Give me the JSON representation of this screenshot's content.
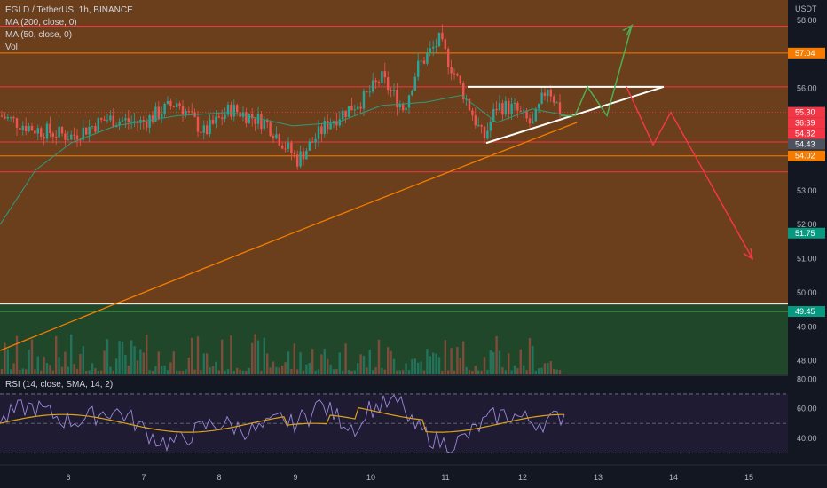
{
  "legend": {
    "symbol_line": "EGLD / TetherUS, 1h, BINANCE",
    "ma200": "MA (200, close, 0)",
    "ma50": "MA (50, close, 0)",
    "vol": "Vol",
    "rsi": "RSI (14, close, SMA, 14, 2)"
  },
  "price_axis": {
    "currency": "USDT",
    "ticks": [
      "58.00",
      "56.00",
      "53.00",
      "52.00",
      "51.00",
      "50.00",
      "49.00",
      "48.00"
    ],
    "tick_values": [
      58,
      56,
      53,
      52,
      51,
      50,
      49,
      48
    ],
    "range": [
      47.6,
      58.6
    ],
    "badges": [
      {
        "label": "57.04",
        "value": 57.04,
        "color": "#f57c00"
      },
      {
        "label": "55.30",
        "value": 55.3,
        "color": "#f23645"
      },
      {
        "label": "36:39",
        "value": 55.07,
        "color": "#f23645"
      },
      {
        "label": "54.82",
        "value": 54.82,
        "color": "#f23645"
      },
      {
        "label": "54.43",
        "value": 54.43,
        "color": "#4c525e"
      },
      {
        "label": "54.02",
        "value": 54.02,
        "color": "#f57c00"
      },
      {
        "label": "51.75",
        "value": 51.75,
        "color": "#089981"
      },
      {
        "label": "49.45",
        "value": 49.45,
        "color": "#089981"
      }
    ]
  },
  "rsi_axis": {
    "ticks": [
      "80.00",
      "60.00",
      "40.00"
    ],
    "tick_values": [
      80,
      60,
      40
    ],
    "range": [
      23,
      82
    ],
    "bands": [
      70,
      50,
      30
    ]
  },
  "time_axis": {
    "labels": [
      "6",
      "7",
      "8",
      "9",
      "10",
      "11",
      "12",
      "13",
      "14",
      "15"
    ]
  },
  "horizontal_levels": [
    {
      "value": 57.83,
      "color": "#f23645"
    },
    {
      "value": 57.04,
      "color": "#f57c00"
    },
    {
      "value": 56.05,
      "color": "#f23645"
    },
    {
      "value": 54.43,
      "color": "#f23645"
    },
    {
      "value": 54.02,
      "color": "#f57c00"
    },
    {
      "value": 53.55,
      "color": "#f23645"
    },
    {
      "value": 49.67,
      "color": "#ffffff"
    },
    {
      "value": 49.45,
      "color": "#4caf50"
    }
  ],
  "colors": {
    "zone_orange": "#6b3f1c",
    "zone_green": "#21472a",
    "rsi_bg": "#1e1b33",
    "up": "#26a69a",
    "down": "#ef5350",
    "ma200": "#f57c00",
    "ma50": "#2e9a7e",
    "rsi_line": "#9c88d8",
    "rsi_ma": "#d9a21b",
    "projection_up": "#4caf50",
    "projection_down": "#f23645"
  }
}
